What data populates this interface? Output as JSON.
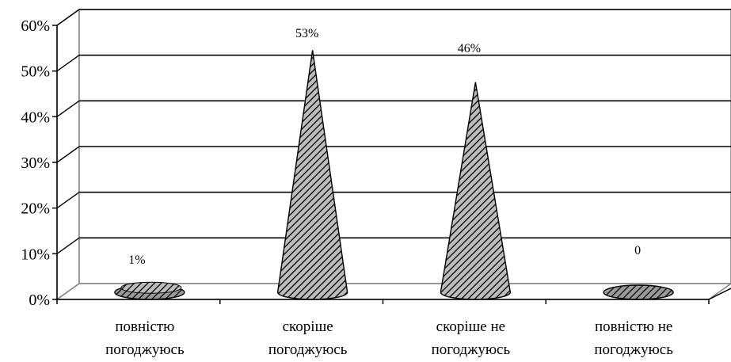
{
  "chart_data": {
    "type": "bar",
    "style": "3d-cone",
    "categories": [
      [
        "повністю",
        "погоджуюсь"
      ],
      [
        "скоріше",
        "погоджуюсь"
      ],
      [
        "скоріше не",
        "погоджуюсь"
      ],
      [
        "повністю не",
        "погоджуюсь"
      ]
    ],
    "values": [
      1,
      53,
      46,
      0
    ],
    "data_labels": [
      "1%",
      "53%",
      "46%",
      "0"
    ],
    "ylim": [
      0,
      60
    ],
    "y_ticks": [
      0,
      10,
      20,
      30,
      40,
      50,
      60
    ],
    "y_tick_labels": [
      "0%",
      "10%",
      "20%",
      "30%",
      "40%",
      "50%",
      "60%"
    ],
    "grid": true,
    "legend": "none",
    "colors": {
      "fill": "#7f7f7f",
      "hatch": "#1a1a1a",
      "grid": "#000000",
      "wall": "#ffffff",
      "frame": "#808080"
    }
  }
}
